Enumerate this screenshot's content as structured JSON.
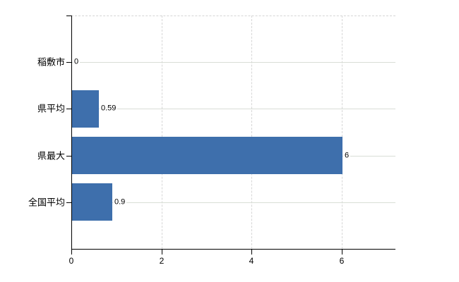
{
  "chart_data": {
    "type": "bar",
    "orientation": "horizontal",
    "title": "",
    "xlabel": "",
    "ylabel": "",
    "categories": [
      "稲敷市",
      "県平均",
      "県最大",
      "全国平均"
    ],
    "values": [
      0,
      0.59,
      6,
      0.9
    ],
    "value_labels": [
      "0",
      "0.59",
      "6",
      "0.9"
    ],
    "xticks": [
      0,
      2,
      4,
      6
    ],
    "xtick_labels": [
      "0",
      "2",
      "4",
      "6"
    ],
    "xlim": [
      0,
      7.2
    ],
    "grid": true,
    "legend_position": "none",
    "bar_color": "#3e6fac",
    "hgrid_color": "#d9ded6",
    "vgrid_color": "#d6d6d6",
    "axis_color": "#000000",
    "background_color": "#ffffff"
  }
}
